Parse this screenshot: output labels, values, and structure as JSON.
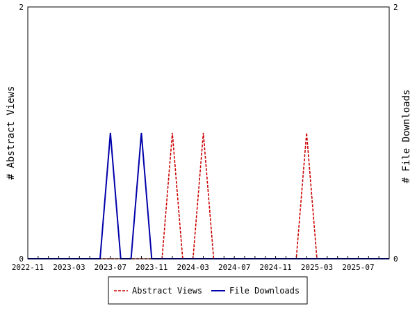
{
  "chart_data": {
    "type": "line",
    "x_start": "2022-11",
    "x_end": "2025-10",
    "x_tick_labels": [
      "2022-11",
      "2023-03",
      "2023-07",
      "2023-11",
      "2024-03",
      "2024-07",
      "2024-11",
      "2025-03",
      "2025-07"
    ],
    "y_left_label": "# Abstract Views",
    "y_right_label": "# File Downloads",
    "ylim": [
      0,
      2
    ],
    "y_left_ticks": [
      "0",
      "2"
    ],
    "y_right_ticks": [
      "0",
      "2"
    ],
    "grid": false,
    "legend_position": "bottom",
    "series": [
      {
        "name": "Abstract Views",
        "color": "#cc0000",
        "style": "dashed",
        "points": [
          [
            "2022-11",
            0
          ],
          [
            "2023-11",
            0
          ],
          [
            "2023-12",
            0
          ],
          [
            "2024-01",
            1
          ],
          [
            "2024-02",
            0
          ],
          [
            "2024-03",
            0
          ],
          [
            "2024-04",
            1
          ],
          [
            "2024-05",
            0
          ],
          [
            "2025-01",
            0
          ],
          [
            "2025-02",
            1
          ],
          [
            "2025-03",
            0
          ],
          [
            "2025-10",
            0
          ]
        ]
      },
      {
        "name": "File Downloads",
        "color": "#0000aa",
        "style": "solid",
        "points": [
          [
            "2022-11",
            0
          ],
          [
            "2023-06",
            0
          ],
          [
            "2023-07",
            1
          ],
          [
            "2023-08",
            0
          ],
          [
            "2023-09",
            0
          ],
          [
            "2023-10",
            1
          ],
          [
            "2023-11",
            0
          ],
          [
            "2025-10",
            0
          ]
        ]
      }
    ]
  }
}
